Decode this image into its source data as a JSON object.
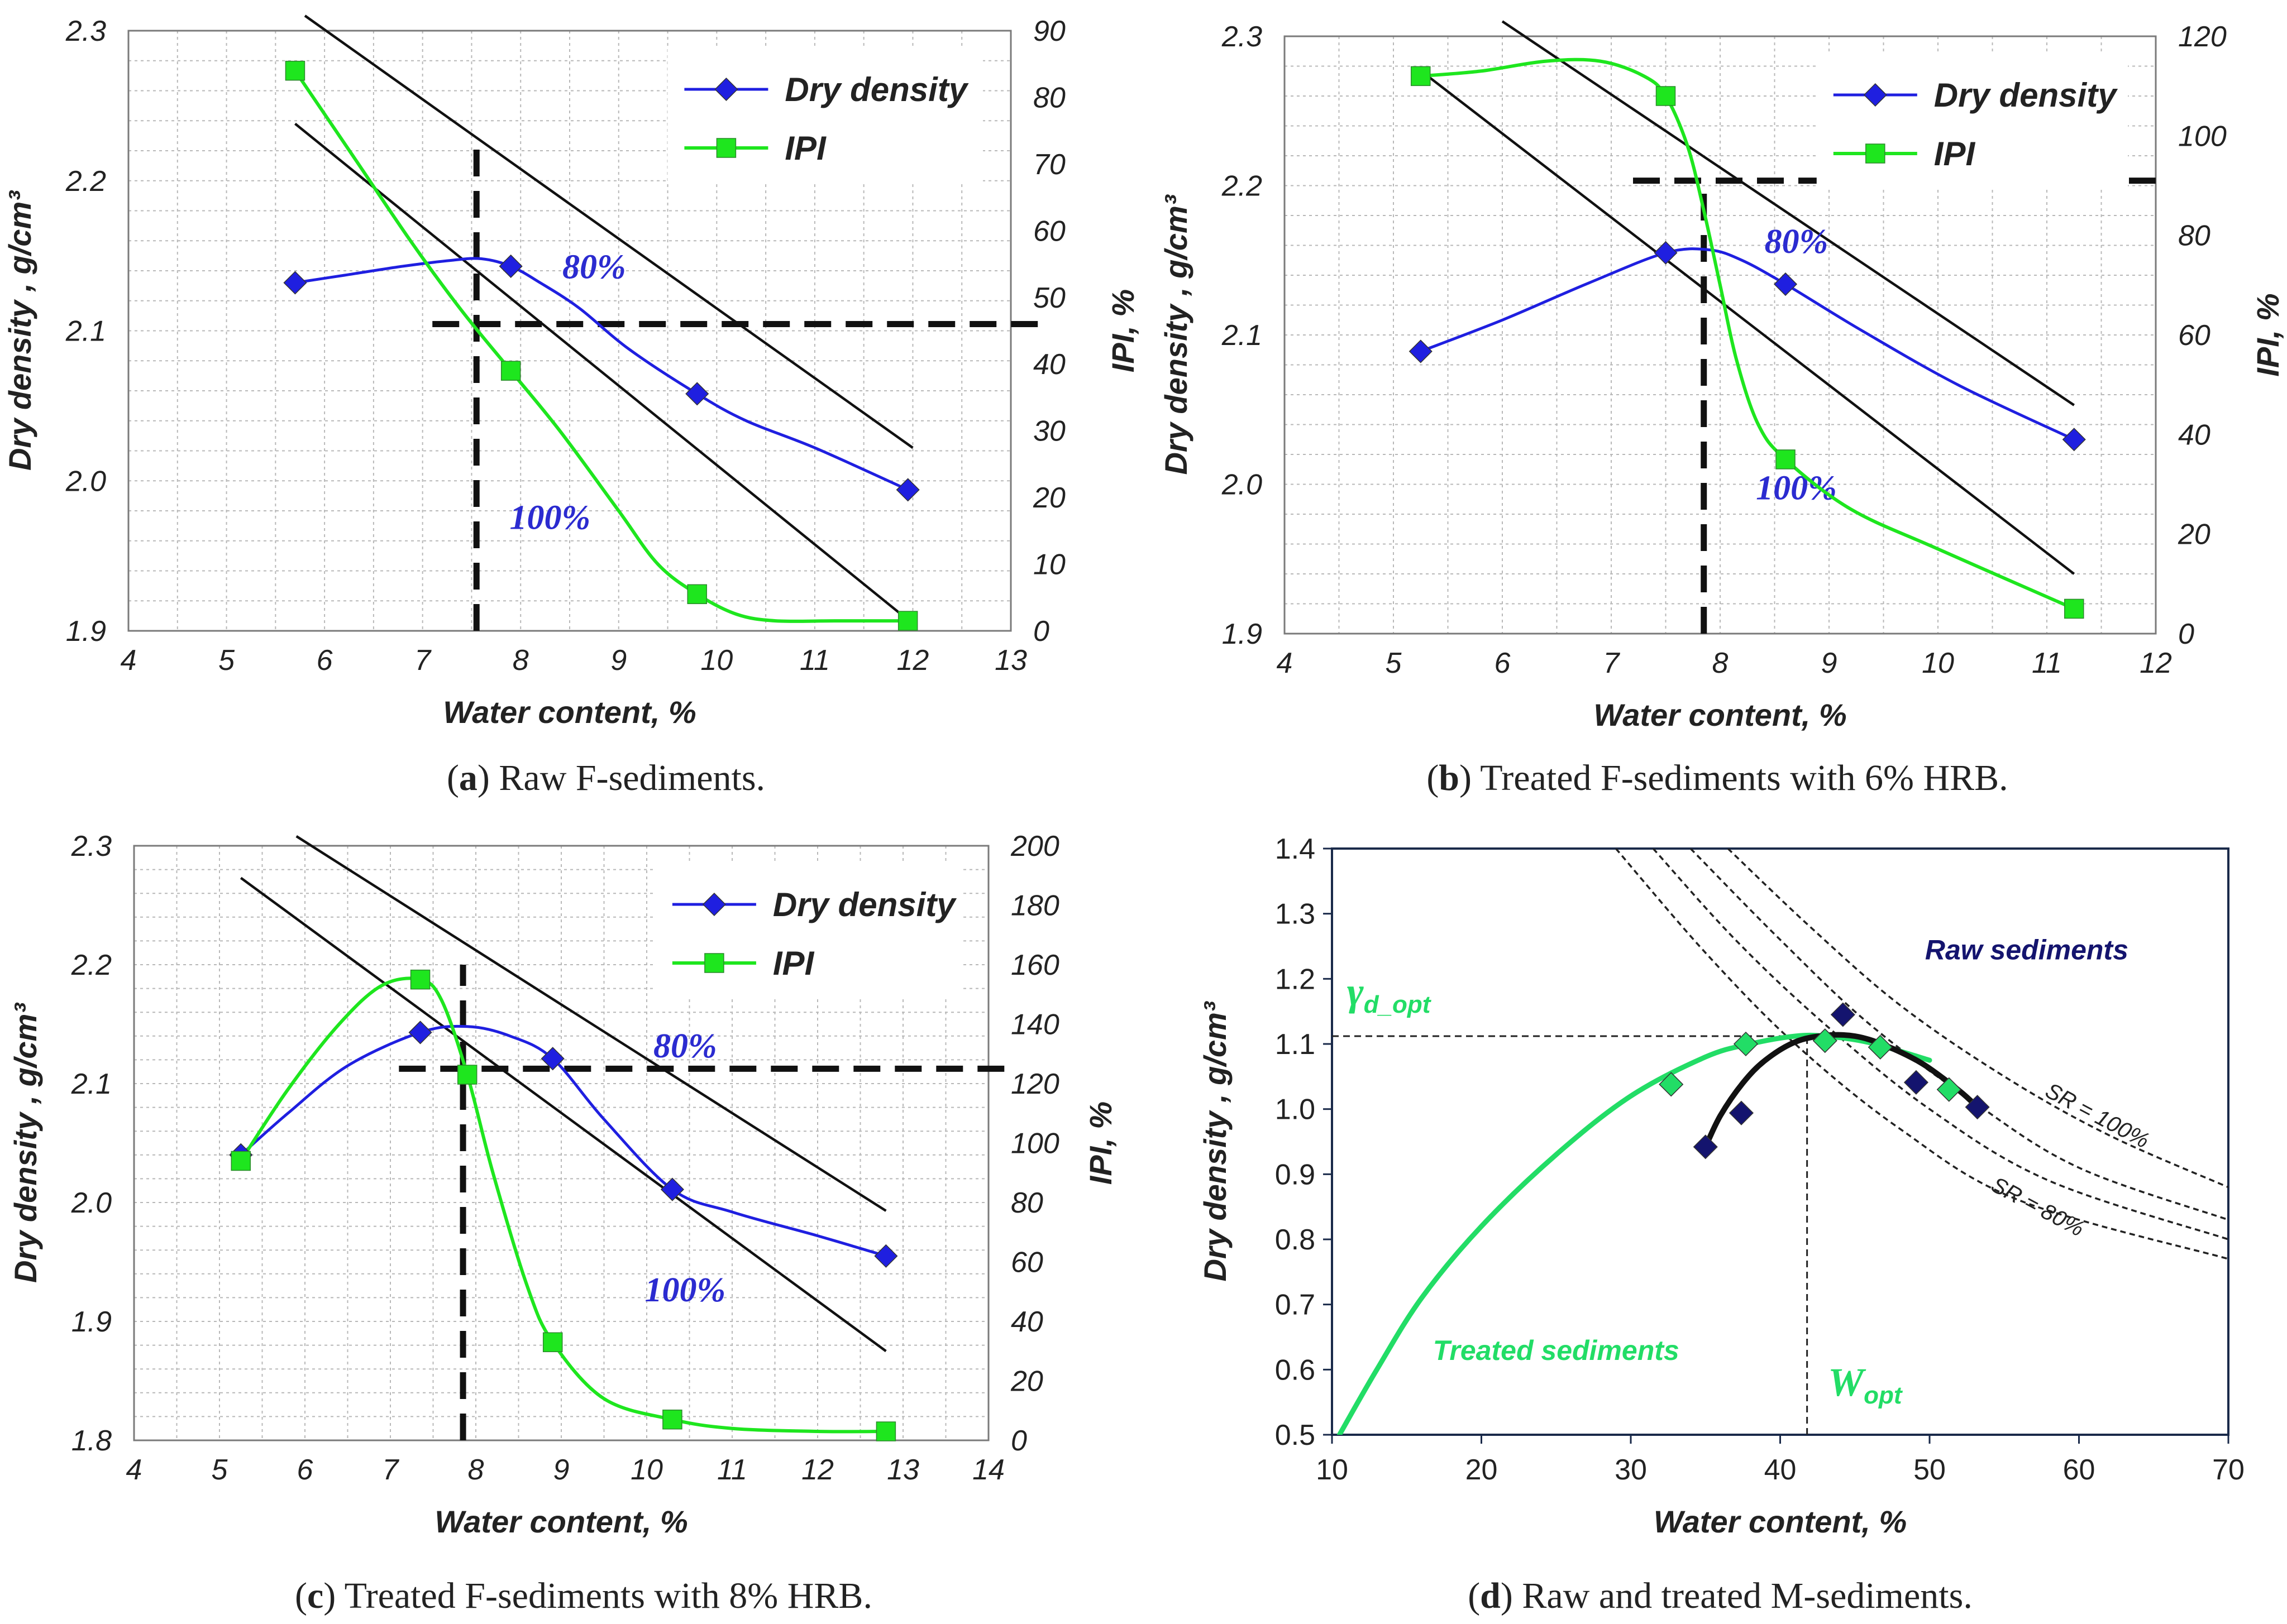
{
  "chart_data": [
    {
      "type": "line",
      "panel": "a",
      "caption_letter": "a",
      "caption_text": " Raw F-sediments.",
      "xlabel": "Water content, %",
      "ylabel": "Dry density , g/cm³",
      "y2label": "IPI, %",
      "xlim": [
        4,
        13
      ],
      "ylim": [
        1.9,
        2.3
      ],
      "y2lim": [
        0,
        90
      ],
      "xticks": [
        "4",
        "5",
        "6",
        "7",
        "8",
        "9",
        "10",
        "11",
        "12",
        "13"
      ],
      "yticks": [
        "1.9",
        "2.0",
        "2.1",
        "2.2",
        "2.3"
      ],
      "y2ticks": [
        "0",
        "10",
        "20",
        "30",
        "40",
        "50",
        "60",
        "70",
        "80",
        "90"
      ],
      "grid": true,
      "legend_position": "top-right",
      "series": [
        {
          "name": "Dry density",
          "axis": "left",
          "color": "#1f1fe0",
          "marker": "diamond",
          "x": [
            5.7,
            7.9,
            9.8,
            11.95
          ],
          "y": [
            2.132,
            2.143,
            2.058,
            1.994
          ],
          "curve_x": [
            5.7,
            6.2,
            6.8,
            7.3,
            7.6,
            7.9,
            8.2,
            8.6,
            9.1,
            9.8,
            10.3,
            11.0,
            11.95
          ],
          "curve_y": [
            2.132,
            2.137,
            2.143,
            2.147,
            2.148,
            2.143,
            2.132,
            2.115,
            2.088,
            2.058,
            2.04,
            2.022,
            1.994
          ]
        },
        {
          "name": "IPI",
          "axis": "right",
          "color": "#1ee61e",
          "marker": "square",
          "x": [
            5.7,
            7.9,
            9.8,
            11.95
          ],
          "y": [
            84,
            39,
            5.5,
            1.5
          ],
          "curve_x": [
            5.7,
            6.3,
            6.9,
            7.4,
            7.9,
            8.4,
            9.0,
            9.4,
            9.8,
            10.2,
            10.6,
            11.2,
            11.95
          ],
          "curve_y": [
            84,
            71,
            58,
            48,
            39,
            30,
            18,
            10,
            5.5,
            2.5,
            1.5,
            1.5,
            1.5
          ]
        }
      ],
      "saturation_lines": [
        {
          "label": "80%",
          "x": [
            5.8,
            12
          ],
          "y": [
            2.31,
            2.022
          ]
        },
        {
          "label": "100%",
          "x": [
            5.7,
            11.9
          ],
          "y": [
            2.238,
            1.91
          ]
        }
      ],
      "saturation_label_positions": [
        {
          "label": "80%",
          "x": 8.75,
          "y": 2.135
        },
        {
          "label": "100%",
          "x": 8.3,
          "y": 1.968
        }
      ],
      "dashed_guides": [
        {
          "axis": "left",
          "x": [
            7.55,
            7.55
          ],
          "y": [
            1.9,
            2.228
          ]
        },
        {
          "axis": "right",
          "x": [
            7.1,
            13.3
          ],
          "y": [
            46,
            46
          ]
        }
      ]
    },
    {
      "type": "line",
      "panel": "b",
      "caption_letter": "b",
      "caption_text": " Treated F-sediments with 6% HRB.",
      "xlabel": "Water content, %",
      "ylabel": "Dry density , g/cm³",
      "y2label": "IPI, %",
      "xlim": [
        4,
        12
      ],
      "ylim": [
        1.9,
        2.3
      ],
      "y2lim": [
        0,
        120
      ],
      "xticks": [
        "4",
        "5",
        "6",
        "7",
        "8",
        "9",
        "10",
        "11",
        "12"
      ],
      "yticks": [
        "1.9",
        "2.0",
        "2.1",
        "2.2",
        "2.3"
      ],
      "y2ticks": [
        "0",
        "20",
        "40",
        "60",
        "80",
        "100",
        "120"
      ],
      "grid": true,
      "legend_position": "top-right",
      "series": [
        {
          "name": "Dry density",
          "axis": "left",
          "color": "#1f1fe0",
          "marker": "diamond",
          "x": [
            5.25,
            7.5,
            8.6,
            11.25
          ],
          "y": [
            2.089,
            2.155,
            2.134,
            2.03
          ],
          "curve_x": [
            5.25,
            6.0,
            6.8,
            7.5,
            7.9,
            8.2,
            8.6,
            9.3,
            10.2,
            11.25
          ],
          "curve_y": [
            2.089,
            2.11,
            2.135,
            2.155,
            2.157,
            2.15,
            2.134,
            2.103,
            2.066,
            2.03
          ]
        },
        {
          "name": "IPI",
          "axis": "right",
          "color": "#1ee61e",
          "marker": "square",
          "x": [
            5.25,
            7.5,
            8.6,
            11.25
          ],
          "y": [
            112,
            108,
            35,
            5
          ],
          "curve_x": [
            5.25,
            5.8,
            6.4,
            6.9,
            7.3,
            7.5,
            7.7,
            7.85,
            8.0,
            8.15,
            8.35,
            8.6,
            9.2,
            10.0,
            11.25
          ],
          "curve_y": [
            112,
            113,
            115,
            115,
            112,
            108,
            98,
            85,
            70,
            55,
            42,
            35,
            25,
            17,
            5
          ]
        }
      ],
      "saturation_lines": [
        {
          "label": "80%",
          "x": [
            6.0,
            11.25
          ],
          "y": [
            2.31,
            2.053
          ]
        },
        {
          "label": "100%",
          "x": [
            5.25,
            11.25
          ],
          "y": [
            2.277,
            1.94
          ]
        }
      ],
      "saturation_label_positions": [
        {
          "label": "80%",
          "x": 8.7,
          "y": 2.155
        },
        {
          "label": "100%",
          "x": 8.7,
          "y": 1.99
        }
      ],
      "dashed_guides": [
        {
          "axis": "left",
          "x": [
            7.85,
            7.85
          ],
          "y": [
            1.9,
            2.2
          ]
        },
        {
          "axis": "right",
          "x": [
            7.2,
            12
          ],
          "y": [
            91,
            91
          ]
        }
      ]
    },
    {
      "type": "line",
      "panel": "c",
      "caption_letter": "c",
      "caption_text": " Treated F-sediments with 8% HRB.",
      "xlabel": "Water content, %",
      "ylabel": "Dry density , g/cm³",
      "y2label": "IPI, %",
      "xlim": [
        4,
        14
      ],
      "ylim": [
        1.8,
        2.3
      ],
      "y2lim": [
        0,
        200
      ],
      "xticks": [
        "4",
        "5",
        "6",
        "7",
        "8",
        "9",
        "10",
        "11",
        "12",
        "13",
        "14"
      ],
      "yticks": [
        "1.8",
        "1.9",
        "2.0",
        "2.1",
        "2.2",
        "2.3"
      ],
      "y2ticks": [
        "0",
        "20",
        "40",
        "60",
        "80",
        "100",
        "120",
        "140",
        "160",
        "180",
        "200"
      ],
      "grid": true,
      "legend_position": "top-right",
      "series": [
        {
          "name": "Dry density",
          "axis": "left",
          "color": "#1f1fe0",
          "marker": "diamond",
          "x": [
            5.25,
            7.35,
            8.9,
            10.3,
            12.8
          ],
          "y": [
            2.04,
            2.143,
            2.121,
            2.011,
            1.955
          ],
          "curve_x": [
            5.25,
            5.8,
            6.5,
            7.35,
            7.9,
            8.4,
            8.9,
            9.5,
            10.3,
            11.0,
            12.0,
            12.8
          ],
          "curve_y": [
            2.04,
            2.075,
            2.115,
            2.143,
            2.148,
            2.14,
            2.121,
            2.07,
            2.011,
            1.992,
            1.972,
            1.955
          ]
        },
        {
          "name": "IPI",
          "axis": "right",
          "color": "#1ee61e",
          "marker": "square",
          "x": [
            5.25,
            7.35,
            7.9,
            8.9,
            10.3,
            12.8
          ],
          "y": [
            94,
            155,
            123,
            33,
            7,
            3
          ],
          "curve_x": [
            5.25,
            5.8,
            6.4,
            6.9,
            7.35,
            7.6,
            7.9,
            8.2,
            8.6,
            8.9,
            9.5,
            10.3,
            11.0,
            12.0,
            12.8
          ],
          "curve_y": [
            94,
            118,
            140,
            153,
            155,
            148,
            123,
            90,
            52,
            33,
            14,
            7,
            4,
            3,
            3
          ]
        }
      ],
      "saturation_lines": [
        {
          "label": "80%",
          "x": [
            5.9,
            12.8
          ],
          "y": [
            2.308,
            1.993
          ]
        },
        {
          "label": "100%",
          "x": [
            5.25,
            12.8
          ],
          "y": [
            2.273,
            1.875
          ]
        }
      ],
      "saturation_label_positions": [
        {
          "label": "80%",
          "x": 10.45,
          "y": 2.122
        },
        {
          "label": "100%",
          "x": 10.45,
          "y": 1.917
        }
      ],
      "dashed_guides": [
        {
          "axis": "left",
          "x": [
            7.85,
            7.85
          ],
          "y": [
            1.8,
            2.2
          ]
        },
        {
          "axis": "right",
          "x": [
            7.1,
            14.2
          ],
          "y": [
            125,
            125
          ]
        }
      ]
    },
    {
      "type": "scatter",
      "panel": "d",
      "caption_letter": "d",
      "caption_text": " Raw and treated M-sediments.",
      "xlabel": "Water content, %",
      "ylabel": "Dry density , g/cm³",
      "xlim": [
        10,
        70
      ],
      "ylim": [
        0.5,
        1.4
      ],
      "xticks": [
        "10",
        "20",
        "30",
        "40",
        "50",
        "60",
        "70"
      ],
      "yticks": [
        "0.5",
        "0.6",
        "0.7",
        "0.8",
        "0.9",
        "1.0",
        "1.1",
        "1.2",
        "1.3",
        "1.4"
      ],
      "grid": false,
      "series": [
        {
          "name": "Raw sediments",
          "color": "#14146e",
          "marker": "diamond",
          "x": [
            35.0,
            37.4,
            44.2,
            49.1,
            53.2
          ],
          "y": [
            0.942,
            0.994,
            1.145,
            1.041,
            1.003
          ]
        },
        {
          "name": "Treated sediments",
          "color": "#22dd66",
          "marker": "diamond",
          "x": [
            32.7,
            37.7,
            43.0,
            46.7,
            51.3
          ],
          "y": [
            1.038,
            1.1,
            1.105,
            1.095,
            1.03
          ]
        }
      ],
      "fit_curves": [
        {
          "name": "Treated sediments",
          "color": "#22dd66",
          "x": [
            10.5,
            13,
            16,
            20,
            25,
            30,
            35,
            38,
            41,
            43,
            46,
            50
          ],
          "y": [
            0.5,
            0.6,
            0.71,
            0.82,
            0.93,
            1.02,
            1.08,
            1.1,
            1.112,
            1.112,
            1.102,
            1.075
          ]
        },
        {
          "name": "Raw sediments",
          "color": "#111111",
          "x": [
            35.0,
            36.0,
            37.5,
            39.0,
            41.0,
            43.0,
            45.0,
            47.0,
            49.5,
            52.0,
            53.2
          ],
          "y": [
            0.942,
            0.99,
            1.04,
            1.075,
            1.103,
            1.113,
            1.112,
            1.098,
            1.07,
            1.028,
            1.003
          ]
        }
      ],
      "saturation_curves": [
        {
          "label": "SR = 100%",
          "x": [
            36.5,
            42,
            48,
            55,
            62,
            70
          ],
          "y": [
            1.4,
            1.28,
            1.16,
            1.05,
            0.96,
            0.88
          ]
        },
        {
          "label": "",
          "x": [
            34,
            40,
            46,
            53,
            60,
            70
          ],
          "y": [
            1.4,
            1.26,
            1.13,
            1.01,
            0.91,
            0.83
          ]
        },
        {
          "label": "",
          "x": [
            31.5,
            37,
            43,
            50,
            58,
            70
          ],
          "y": [
            1.4,
            1.26,
            1.13,
            1.0,
            0.89,
            0.8
          ]
        },
        {
          "label": "SR = 80%",
          "x": [
            29,
            35,
            41,
            48,
            56,
            70
          ],
          "y": [
            1.4,
            1.24,
            1.1,
            0.97,
            0.86,
            0.77
          ]
        }
      ],
      "saturation_label_positions": [
        {
          "label": "SR = 100%",
          "x": 61,
          "y": 0.98
        },
        {
          "label": "SR = 80%",
          "x": 57,
          "y": 0.84
        }
      ],
      "dashed_guides": [
        {
          "x": [
            10,
            41.8
          ],
          "y": [
            1.112,
            1.112
          ]
        },
        {
          "x": [
            41.8,
            41.8
          ],
          "y": [
            0.5,
            1.112
          ]
        }
      ],
      "annotations": [
        {
          "text": "Raw sediments",
          "color": "#14146e",
          "x": 56.5,
          "y": 1.23
        },
        {
          "text": "Treated sediments",
          "color": "#22dd66",
          "x": 25,
          "y": 0.615
        },
        {
          "text": "γd_opt",
          "main": "γ",
          "sub": "d_opt",
          "color": "#22dd66",
          "x": 11,
          "y": 1.16
        },
        {
          "text": "Wopt",
          "main": "W",
          "sub": "opt",
          "color": "#22dd66",
          "x": 43.2,
          "y": 0.56
        }
      ]
    }
  ]
}
